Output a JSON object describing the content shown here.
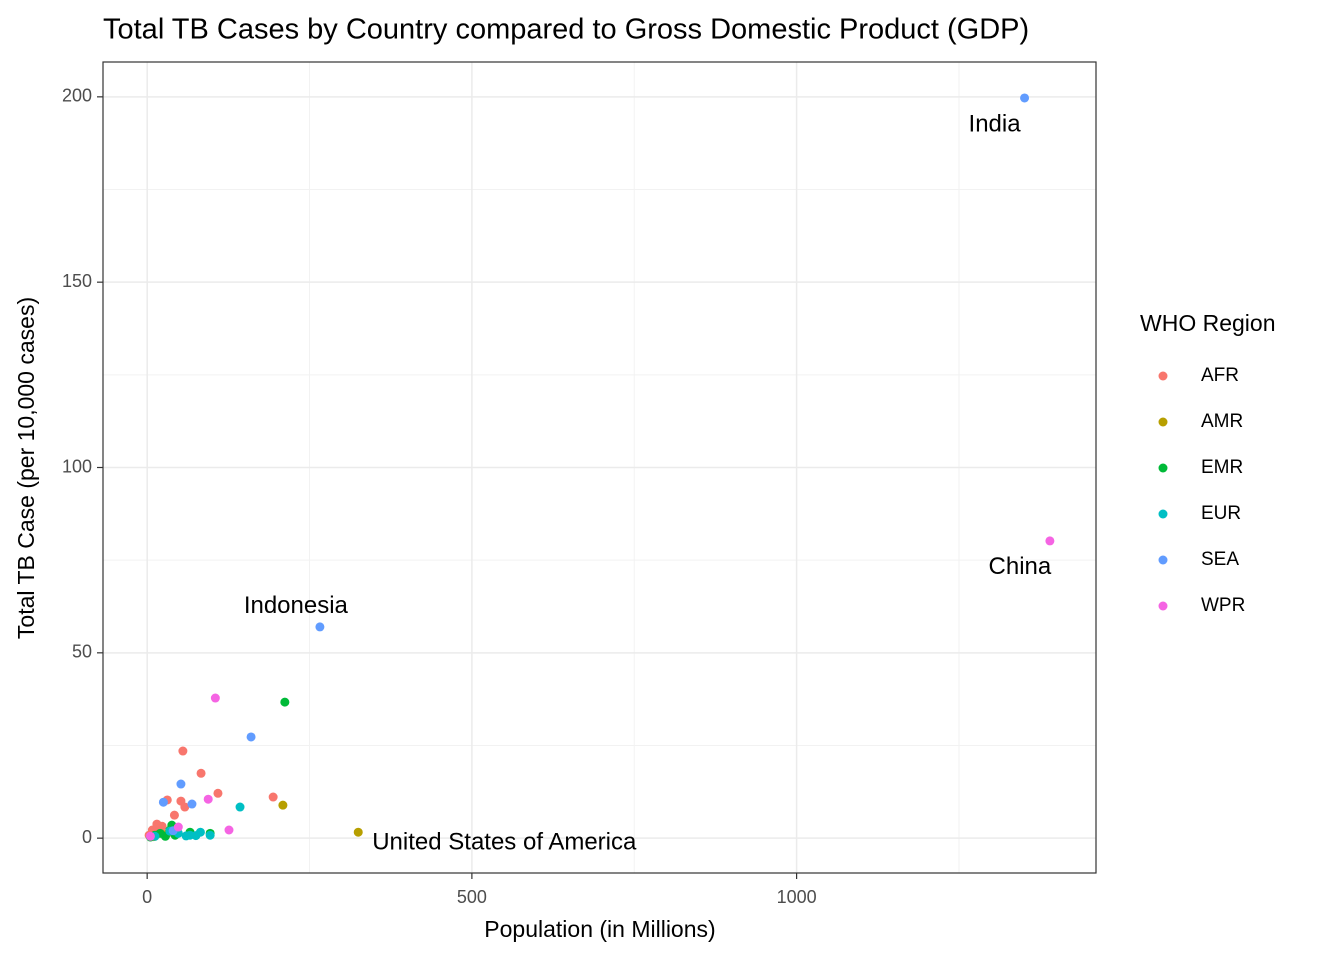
{
  "chart_data": {
    "type": "scatter",
    "title": "Total TB Cases by Country compared to Gross Domestic Product (GDP)",
    "x_label": "Population (in Millions)",
    "y_label": "Total TB Case (per 10,000 cases)",
    "legend_title": "WHO Region",
    "xlim": [
      -68,
      1461
    ],
    "ylim": [
      -9.4,
      209.4
    ],
    "xticks": [
      0,
      500,
      1000
    ],
    "yticks": [
      0,
      50,
      100,
      150,
      200
    ],
    "grid": true,
    "minor_grid": true,
    "legend_position": "right",
    "series": [
      {
        "name": "AFR",
        "color": "#F8766D",
        "x": [
          55,
          83,
          194,
          109,
          52,
          58,
          42,
          31,
          15,
          8,
          23,
          3,
          12,
          19
        ],
        "values": [
          23.5,
          17.5,
          11.1,
          12.1,
          10,
          8.4,
          6.2,
          10.3,
          3.8,
          2.2,
          3.2,
          0.8,
          1.5,
          2.6
        ],
        "labels": [
          null,
          null,
          null,
          null,
          null,
          null,
          null,
          null,
          null,
          null,
          null,
          null,
          null,
          null
        ]
      },
      {
        "name": "AMR",
        "color": "#B79F00",
        "x": [
          325,
          209,
          10,
          30,
          45
        ],
        "values": [
          1.6,
          8.9,
          0.4,
          1.1,
          2.4
        ],
        "labels": [
          "United States of America",
          null,
          null,
          null,
          null
        ]
      },
      {
        "name": "EMR",
        "color": "#00BA38",
        "x": [
          212,
          97,
          5,
          12,
          20,
          35,
          43,
          66,
          28,
          38
        ],
        "values": [
          36.7,
          1.3,
          0.3,
          0.8,
          1.3,
          2.2,
          0.8,
          1.6,
          0.5,
          3.5
        ],
        "labels": [
          null,
          null,
          null,
          null,
          null,
          null,
          null,
          null,
          null,
          null
        ]
      },
      {
        "name": "EUR",
        "color": "#00BFC4",
        "x": [
          143,
          82,
          66,
          48,
          35,
          12,
          97,
          60,
          75
        ],
        "values": [
          8.4,
          1.6,
          0.8,
          1.3,
          1.9,
          0.5,
          0.8,
          0.6,
          0.7
        ],
        "labels": [
          null,
          null,
          null,
          null,
          null,
          null,
          null,
          null,
          null
        ]
      },
      {
        "name": "SEA",
        "color": "#619CFF",
        "x": [
          1351,
          266,
          160,
          52,
          69,
          25,
          40
        ],
        "values": [
          199.7,
          57,
          27.3,
          14.6,
          9.2,
          9.7,
          2.0
        ],
        "labels": [
          "India",
          "Indonesia",
          null,
          null,
          null,
          null,
          null
        ]
      },
      {
        "name": "WPR",
        "color": "#F564E3",
        "x": [
          1390,
          105,
          94,
          126,
          5,
          48
        ],
        "values": [
          80.2,
          37.8,
          10.5,
          2.2,
          0.5,
          3.0
        ],
        "labels": [
          "China",
          null,
          null,
          null,
          null,
          null
        ]
      }
    ]
  }
}
